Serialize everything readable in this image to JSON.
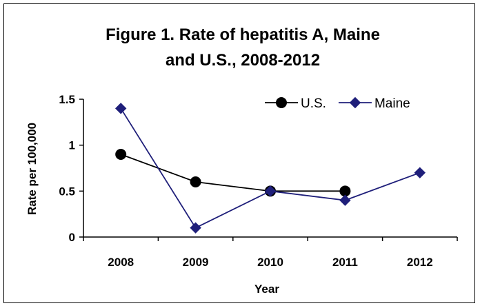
{
  "chart_data": {
    "type": "line",
    "title_lines": [
      "Figure 1. Rate of hepatitis A, Maine",
      "and U.S., 2008-2012"
    ],
    "xlabel": "Year",
    "ylabel": "Rate per 100,000",
    "categories": [
      "2008",
      "2009",
      "2010",
      "2011",
      "2012"
    ],
    "y_ticks": [
      "0",
      "0.5",
      "1",
      "1.5"
    ],
    "ylim": [
      0,
      1.5
    ],
    "grid": false,
    "legend_position": "top-right",
    "series": [
      {
        "name": "U.S.",
        "values": [
          0.9,
          0.6,
          0.5,
          0.5,
          null
        ],
        "color": "#000000",
        "marker": "circle"
      },
      {
        "name": "Maine",
        "values": [
          1.4,
          0.1,
          0.5,
          0.4,
          0.7
        ],
        "color": "#1F1F7A",
        "marker": "diamond"
      }
    ]
  }
}
